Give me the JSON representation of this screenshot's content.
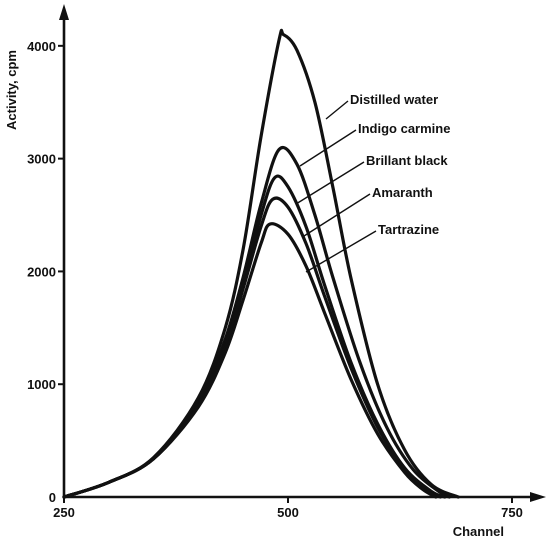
{
  "chart_data": {
    "type": "line",
    "xlabel": "Channel",
    "ylabel": "Activity, cpm",
    "xlim": [
      250,
      750
    ],
    "ylim": [
      0,
      4300
    ],
    "x_ticks": [
      250,
      500,
      750
    ],
    "x_tick_labels": [
      "250",
      "500",
      "750"
    ],
    "y_ticks": [
      0,
      1000,
      2000,
      3000,
      4000
    ],
    "y_tick_labels": [
      "0",
      "1000",
      "2000",
      "3000",
      "4000"
    ],
    "grid": false,
    "legend": "labels pointing to curves",
    "series": [
      {
        "name": "Distilled water",
        "peak_channel": 495,
        "x": [
          250,
          300,
          350,
          400,
          430,
          450,
          470,
          490,
          495,
          510,
          530,
          550,
          570,
          600,
          630,
          660,
          690
        ],
        "y": [
          0,
          130,
          350,
          880,
          1500,
          2200,
          3200,
          4050,
          4100,
          3960,
          3500,
          2750,
          1950,
          1000,
          420,
          110,
          0
        ]
      },
      {
        "name": "Indigo carmine",
        "peak_channel": 490,
        "x": [
          250,
          300,
          350,
          400,
          430,
          450,
          470,
          490,
          510,
          530,
          550,
          580,
          610,
          640,
          670,
          680
        ],
        "y": [
          0,
          130,
          340,
          830,
          1400,
          1950,
          2600,
          3080,
          2950,
          2500,
          1950,
          1200,
          620,
          240,
          40,
          0
        ]
      },
      {
        "name": "Brillant black",
        "peak_channel": 485,
        "x": [
          250,
          300,
          350,
          400,
          430,
          450,
          470,
          485,
          500,
          520,
          540,
          570,
          600,
          630,
          660,
          675
        ],
        "y": [
          0,
          130,
          340,
          820,
          1350,
          1900,
          2500,
          2830,
          2750,
          2400,
          1900,
          1200,
          650,
          260,
          50,
          0
        ]
      },
      {
        "name": "Amaranth",
        "peak_channel": 483,
        "x": [
          250,
          300,
          350,
          400,
          430,
          450,
          470,
          483,
          500,
          520,
          540,
          570,
          600,
          630,
          655,
          670
        ],
        "y": [
          0,
          130,
          340,
          820,
          1320,
          1850,
          2400,
          2640,
          2570,
          2250,
          1800,
          1150,
          620,
          250,
          60,
          0
        ]
      },
      {
        "name": "Tartrazine",
        "peak_channel": 480,
        "x": [
          250,
          300,
          350,
          400,
          430,
          450,
          470,
          480,
          500,
          520,
          540,
          570,
          600,
          630,
          650,
          665
        ],
        "y": [
          0,
          130,
          340,
          800,
          1280,
          1750,
          2250,
          2420,
          2330,
          2050,
          1650,
          1050,
          560,
          220,
          70,
          0
        ]
      }
    ]
  }
}
